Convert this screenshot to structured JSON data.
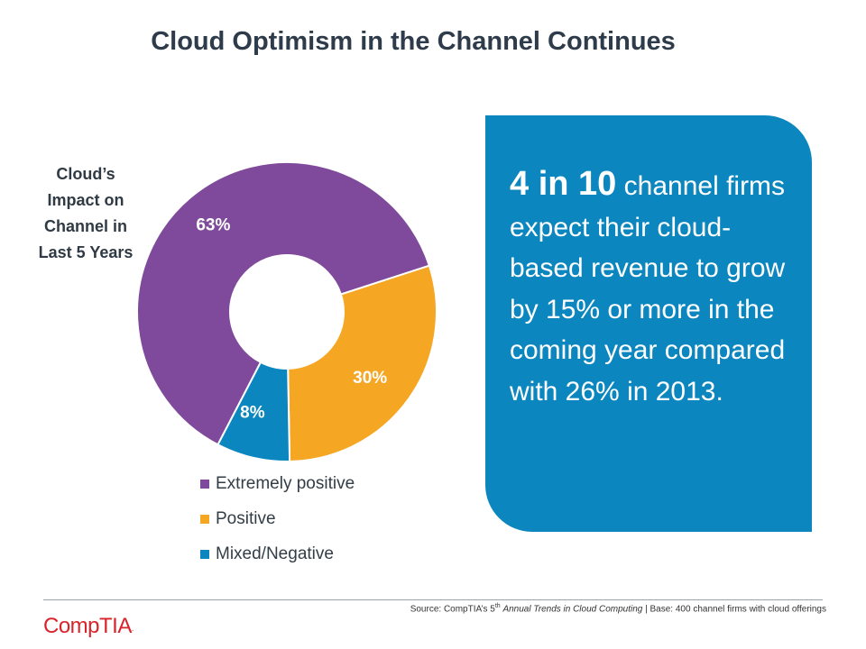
{
  "title": "Cloud Optimism in the Channel Continues",
  "chart_data": {
    "type": "pie",
    "title": "Cloud’s Impact on Channel in Last 5 Years",
    "title_lines": [
      "Cloud’s",
      "Impact on",
      "Channel in",
      "Last 5 Years"
    ],
    "categories": [
      "Extremely positive",
      "Positive",
      "Mixed/Negative"
    ],
    "values": [
      63,
      30,
      8
    ],
    "labels": [
      "63%",
      "30%",
      "8%"
    ],
    "colors": [
      "#7f4a9b",
      "#f5a623",
      "#0b86bf"
    ],
    "legend_position": "bottom"
  },
  "callout": {
    "highlight": "4 in 10",
    "text": "channel firms expect their cloud-based revenue to grow by 15% or more in the coming year compared with 26% in 2013."
  },
  "footer": {
    "source_prefix": "Source: CompTIA’s 5",
    "source_sup": "th",
    "source_report": "Annual Trends in Cloud Computing",
    "source_suffix": " | Base: 400 channel firms with cloud offerings",
    "logo_text": "CompTIA",
    "logo_mark": "."
  },
  "colors": {
    "callout_bg": "#0b86bf",
    "logo": "#d8232a"
  }
}
